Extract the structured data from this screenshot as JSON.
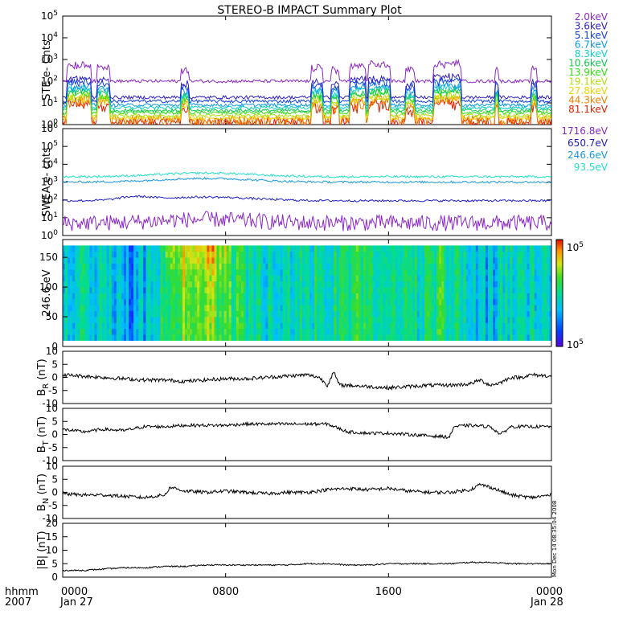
{
  "title": "STEREO-B IMPACT Summary Plot",
  "footer": {
    "left_label": "hhmm",
    "left_year": "2007",
    "start_date": "Jan 27",
    "end_date": "Jan 28",
    "timestamp": "Mon Dec 14 08:35:04 2008"
  },
  "x_ticks": [
    "0000",
    "0800",
    "1600",
    "0000"
  ],
  "chart_data": [
    {
      "type": "line",
      "ylabel": "STE e- Cnts",
      "yscale": "log",
      "ylim": [
        1,
        100000
      ],
      "y_ticks": [
        {
          "base": "10",
          "exp": "0"
        },
        {
          "base": "10",
          "exp": "1"
        },
        {
          "base": "10",
          "exp": "2"
        },
        {
          "base": "10",
          "exp": "3"
        },
        {
          "base": "10",
          "exp": "4"
        },
        {
          "base": "10",
          "exp": "5"
        }
      ],
      "series": [
        {
          "name": "2.0keV",
          "color": "#8b28c8",
          "base": 100
        },
        {
          "name": "3.6keV",
          "color": "#3020c0",
          "base": 18
        },
        {
          "name": "5.1keV",
          "color": "#1040e0",
          "base": 12
        },
        {
          "name": "6.7keV",
          "color": "#1098e8",
          "base": 8
        },
        {
          "name": "8.3keV",
          "color": "#10d0c8",
          "base": 6
        },
        {
          "name": "10.6keV",
          "color": "#10c850",
          "base": 4.5
        },
        {
          "name": "13.9keV",
          "color": "#30e010",
          "base": 3.5
        },
        {
          "name": "19.1keV",
          "color": "#b0e010",
          "base": 2.6
        },
        {
          "name": "27.8keV",
          "color": "#f0d000",
          "base": 2
        },
        {
          "name": "44.3keV",
          "color": "#f08000",
          "base": 1.6
        },
        {
          "name": "81.1keV",
          "color": "#e02000",
          "base": 1.2
        }
      ]
    },
    {
      "type": "line",
      "ylabel": "SWEA e- cnts",
      "yscale": "log",
      "ylim": [
        1,
        1000000
      ],
      "y_ticks": [
        {
          "base": "10",
          "exp": "0"
        },
        {
          "base": "10",
          "exp": "1"
        },
        {
          "base": "10",
          "exp": "2"
        },
        {
          "base": "10",
          "exp": "3"
        },
        {
          "base": "10",
          "exp": "4"
        },
        {
          "base": "10",
          "exp": "5"
        },
        {
          "base": "10",
          "exp": "6"
        }
      ],
      "series": [
        {
          "name": "1716.8eV",
          "color": "#8b28c8",
          "base": 5
        },
        {
          "name": "650.7eV",
          "color": "#2020c0",
          "base": 90
        },
        {
          "name": "246.6eV",
          "color": "#1898e0",
          "base": 1000
        },
        {
          "name": "93.5eV",
          "color": "#20e0c8",
          "base": 2000
        }
      ]
    },
    {
      "type": "heatmap",
      "ylabel": "246.6 eV",
      "ylim": [
        0,
        180
      ],
      "y_ticks": [
        "0",
        "50",
        "100",
        "150"
      ],
      "colorbar_ticks": [
        {
          "base": "10",
          "exp": "5"
        },
        {
          "base": "10",
          "exp": "5"
        }
      ]
    },
    {
      "type": "line",
      "ylabel": "B_R (nT)",
      "ylabel_main": "B",
      "ylabel_sub": "R",
      "ylabel_unit": "(nT)",
      "ylim": [
        -10,
        10
      ],
      "y_ticks": [
        "-10",
        "-5",
        "0",
        "5",
        "10"
      ],
      "x": [
        0,
        1,
        2,
        3,
        4,
        5,
        6,
        7,
        8,
        9,
        10,
        11,
        12,
        12.6,
        13,
        13.3,
        13.6,
        14,
        15,
        16,
        17,
        18,
        19,
        20,
        20.5,
        21,
        21.5,
        22,
        22.5,
        23,
        24
      ],
      "values": [
        1,
        0.5,
        0,
        -0.5,
        -1,
        -1,
        -1.5,
        -1,
        -0.5,
        -0.5,
        0,
        0.5,
        1,
        0,
        -3,
        2,
        -3,
        -3,
        -3.5,
        -4,
        -3.5,
        -3,
        -3,
        -2.5,
        -1,
        -3,
        -2,
        0,
        0,
        1,
        0.5
      ]
    },
    {
      "type": "line",
      "ylabel": "B_T (nT)",
      "ylabel_main": "B",
      "ylabel_sub": "T",
      "ylabel_unit": "(nT)",
      "ylim": [
        -10,
        10
      ],
      "y_ticks": [
        "-10",
        "-5",
        "0",
        "5",
        "10"
      ],
      "x": [
        0,
        1,
        2,
        3,
        4,
        5,
        6,
        7,
        8,
        9,
        10,
        11,
        12,
        13,
        14,
        15,
        16,
        17,
        18,
        19,
        19.2,
        20,
        21,
        21.5,
        22,
        23,
        24
      ],
      "values": [
        2,
        1,
        2,
        1.5,
        3,
        3,
        3.5,
        3.5,
        3.5,
        4,
        4,
        4,
        4,
        4,
        1,
        0.5,
        0.5,
        0,
        -0.5,
        -1,
        3,
        3.5,
        3,
        0,
        3,
        3,
        3
      ]
    },
    {
      "type": "line",
      "ylabel": "B_N (nT)",
      "ylabel_main": "B",
      "ylabel_sub": "N",
      "ylabel_unit": "(nT)",
      "ylim": [
        -10,
        10
      ],
      "y_ticks": [
        "-10",
        "-5",
        "0",
        "5",
        "10"
      ],
      "x": [
        0,
        1,
        2,
        3,
        4,
        5,
        5.3,
        6,
        7,
        8,
        9,
        10,
        11,
        12,
        13,
        14,
        15,
        16,
        17,
        18,
        19,
        20,
        20.5,
        21,
        22,
        23,
        24
      ],
      "values": [
        -0.5,
        -1,
        -1,
        -1.5,
        -2,
        -1,
        2,
        0.5,
        0,
        0.5,
        0,
        -0.5,
        0,
        0,
        1,
        1.5,
        1,
        1.5,
        0.5,
        0,
        0,
        1,
        3,
        2,
        -1,
        -2,
        -1
      ]
    },
    {
      "type": "line",
      "ylabel": "|B| (nT)",
      "ylim": [
        0,
        20
      ],
      "y_ticks": [
        "0",
        "5",
        "10",
        "15",
        "20"
      ],
      "x": [
        0,
        1,
        2,
        3,
        4,
        5,
        6,
        7,
        8,
        9,
        10,
        11,
        12,
        13,
        14,
        15,
        16,
        17,
        18,
        19,
        20,
        21,
        22,
        23,
        24
      ],
      "values": [
        2.5,
        2.5,
        3,
        3.5,
        3.5,
        4,
        4,
        4.5,
        4.5,
        4.5,
        4.5,
        4.5,
        5,
        5,
        4.5,
        4.5,
        5,
        5,
        5,
        5,
        5.5,
        5.5,
        5,
        5,
        5
      ]
    }
  ]
}
